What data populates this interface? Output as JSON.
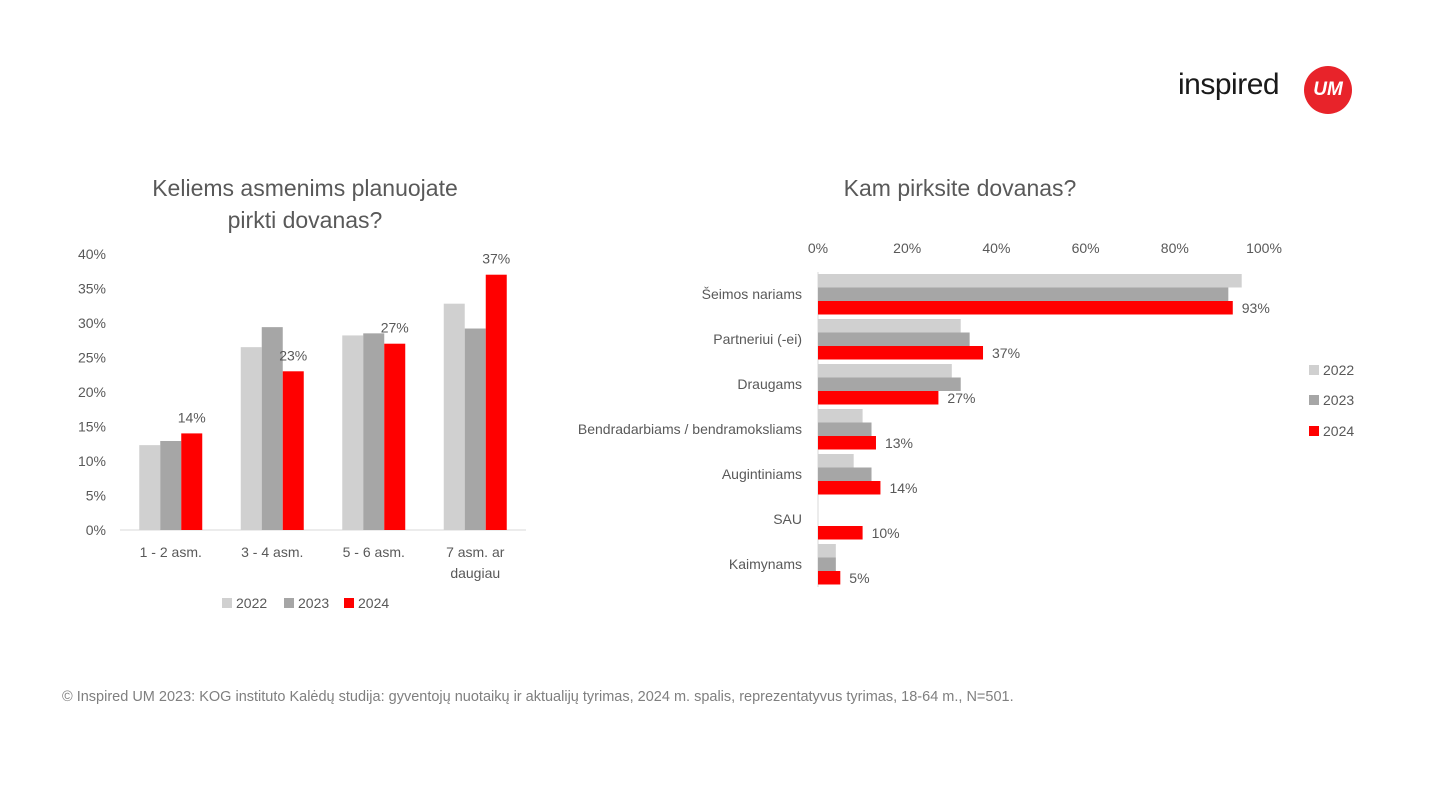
{
  "logo": {
    "text": "inspired",
    "badge": "UM",
    "badge_color": "#e8232a"
  },
  "colors": {
    "2022": "#d0d0d0",
    "2023": "#a6a6a6",
    "2024": "#ff0000"
  },
  "chart_data": [
    {
      "type": "bar",
      "title": "Keliems asmenims planuojate pirkti dovanas?",
      "title_lines": [
        "Keliems asmenims planuojate",
        "pirkti dovanas?"
      ],
      "categories": [
        [
          "1 - 2 asm."
        ],
        [
          "3 - 4 asm."
        ],
        [
          "5 - 6 asm."
        ],
        [
          "7 asm. ar",
          "daugiau"
        ]
      ],
      "series": [
        {
          "name": "2022",
          "values": [
            12.3,
            26.5,
            28.2,
            32.8
          ]
        },
        {
          "name": "2023",
          "values": [
            12.9,
            29.4,
            28.5,
            29.2
          ]
        },
        {
          "name": "2024",
          "values": [
            14,
            23,
            27,
            37
          ],
          "labels": [
            "14%",
            "23%",
            "27%",
            "37%"
          ]
        }
      ],
      "ylim": [
        0,
        40
      ],
      "yticks": [
        0,
        5,
        10,
        15,
        20,
        25,
        30,
        35,
        40
      ],
      "ytick_labels": [
        "0%",
        "5%",
        "10%",
        "15%",
        "20%",
        "25%",
        "30%",
        "35%",
        "40%"
      ],
      "legend": "bottom",
      "grid": false
    },
    {
      "type": "bar",
      "orientation": "horizontal",
      "title": "Kam pirksite dovanas?",
      "categories": [
        "Šeimos nariams",
        "Partneriui (-ei)",
        "Draugams",
        "Bendradarbiams / bendramoksliams",
        "Augintiniams",
        "SAU",
        "Kaimynams"
      ],
      "series": [
        {
          "name": "2022",
          "values": [
            95,
            32,
            30,
            10,
            8,
            null,
            4
          ]
        },
        {
          "name": "2023",
          "values": [
            92,
            34,
            32,
            12,
            12,
            null,
            4
          ]
        },
        {
          "name": "2024",
          "values": [
            93,
            37,
            27,
            13,
            14,
            10,
            5
          ],
          "labels": [
            "93%",
            "37%",
            "27%",
            "13%",
            "14%",
            "10%",
            "5%"
          ]
        }
      ],
      "xlim": [
        0,
        100
      ],
      "xticks": [
        0,
        20,
        40,
        60,
        80,
        100
      ],
      "xtick_labels": [
        "0%",
        "20%",
        "40%",
        "60%",
        "80%",
        "100%"
      ],
      "legend": "right",
      "grid": false
    }
  ],
  "footnote": "© Inspired UM 2023: KOG instituto Kalėdų studija: gyventojų nuotaikų ir aktualijų tyrimas, 2024 m. spalis,  reprezentatyvus tyrimas, 18-64 m., N=501."
}
